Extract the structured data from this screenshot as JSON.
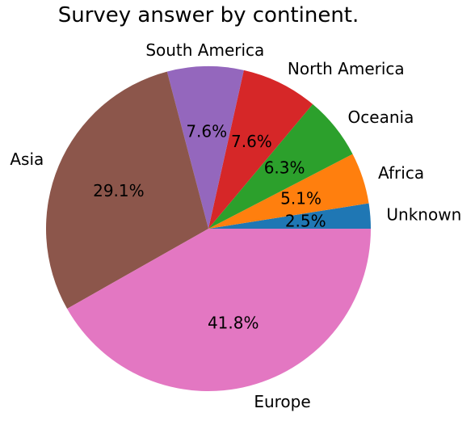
{
  "chart_data": {
    "type": "pie",
    "title": "Survey answer by continent.",
    "categories": [
      "Unknown",
      "Africa",
      "Oceania",
      "North America",
      "South America",
      "Asia",
      "Europe"
    ],
    "values": [
      2.5,
      5.1,
      6.3,
      7.6,
      7.6,
      29.1,
      41.8
    ],
    "value_labels": [
      "2.5%",
      "5.1%",
      "6.3%",
      "7.6%",
      "7.6%",
      "29.1%",
      "41.8%"
    ],
    "colors": [
      "#1f77b4",
      "#ff7f0e",
      "#2ca02c",
      "#d62728",
      "#9467bd",
      "#8c564b",
      "#e377c2"
    ],
    "start_angle_deg": 0,
    "direction": "counterclockwise",
    "legend": "none"
  }
}
